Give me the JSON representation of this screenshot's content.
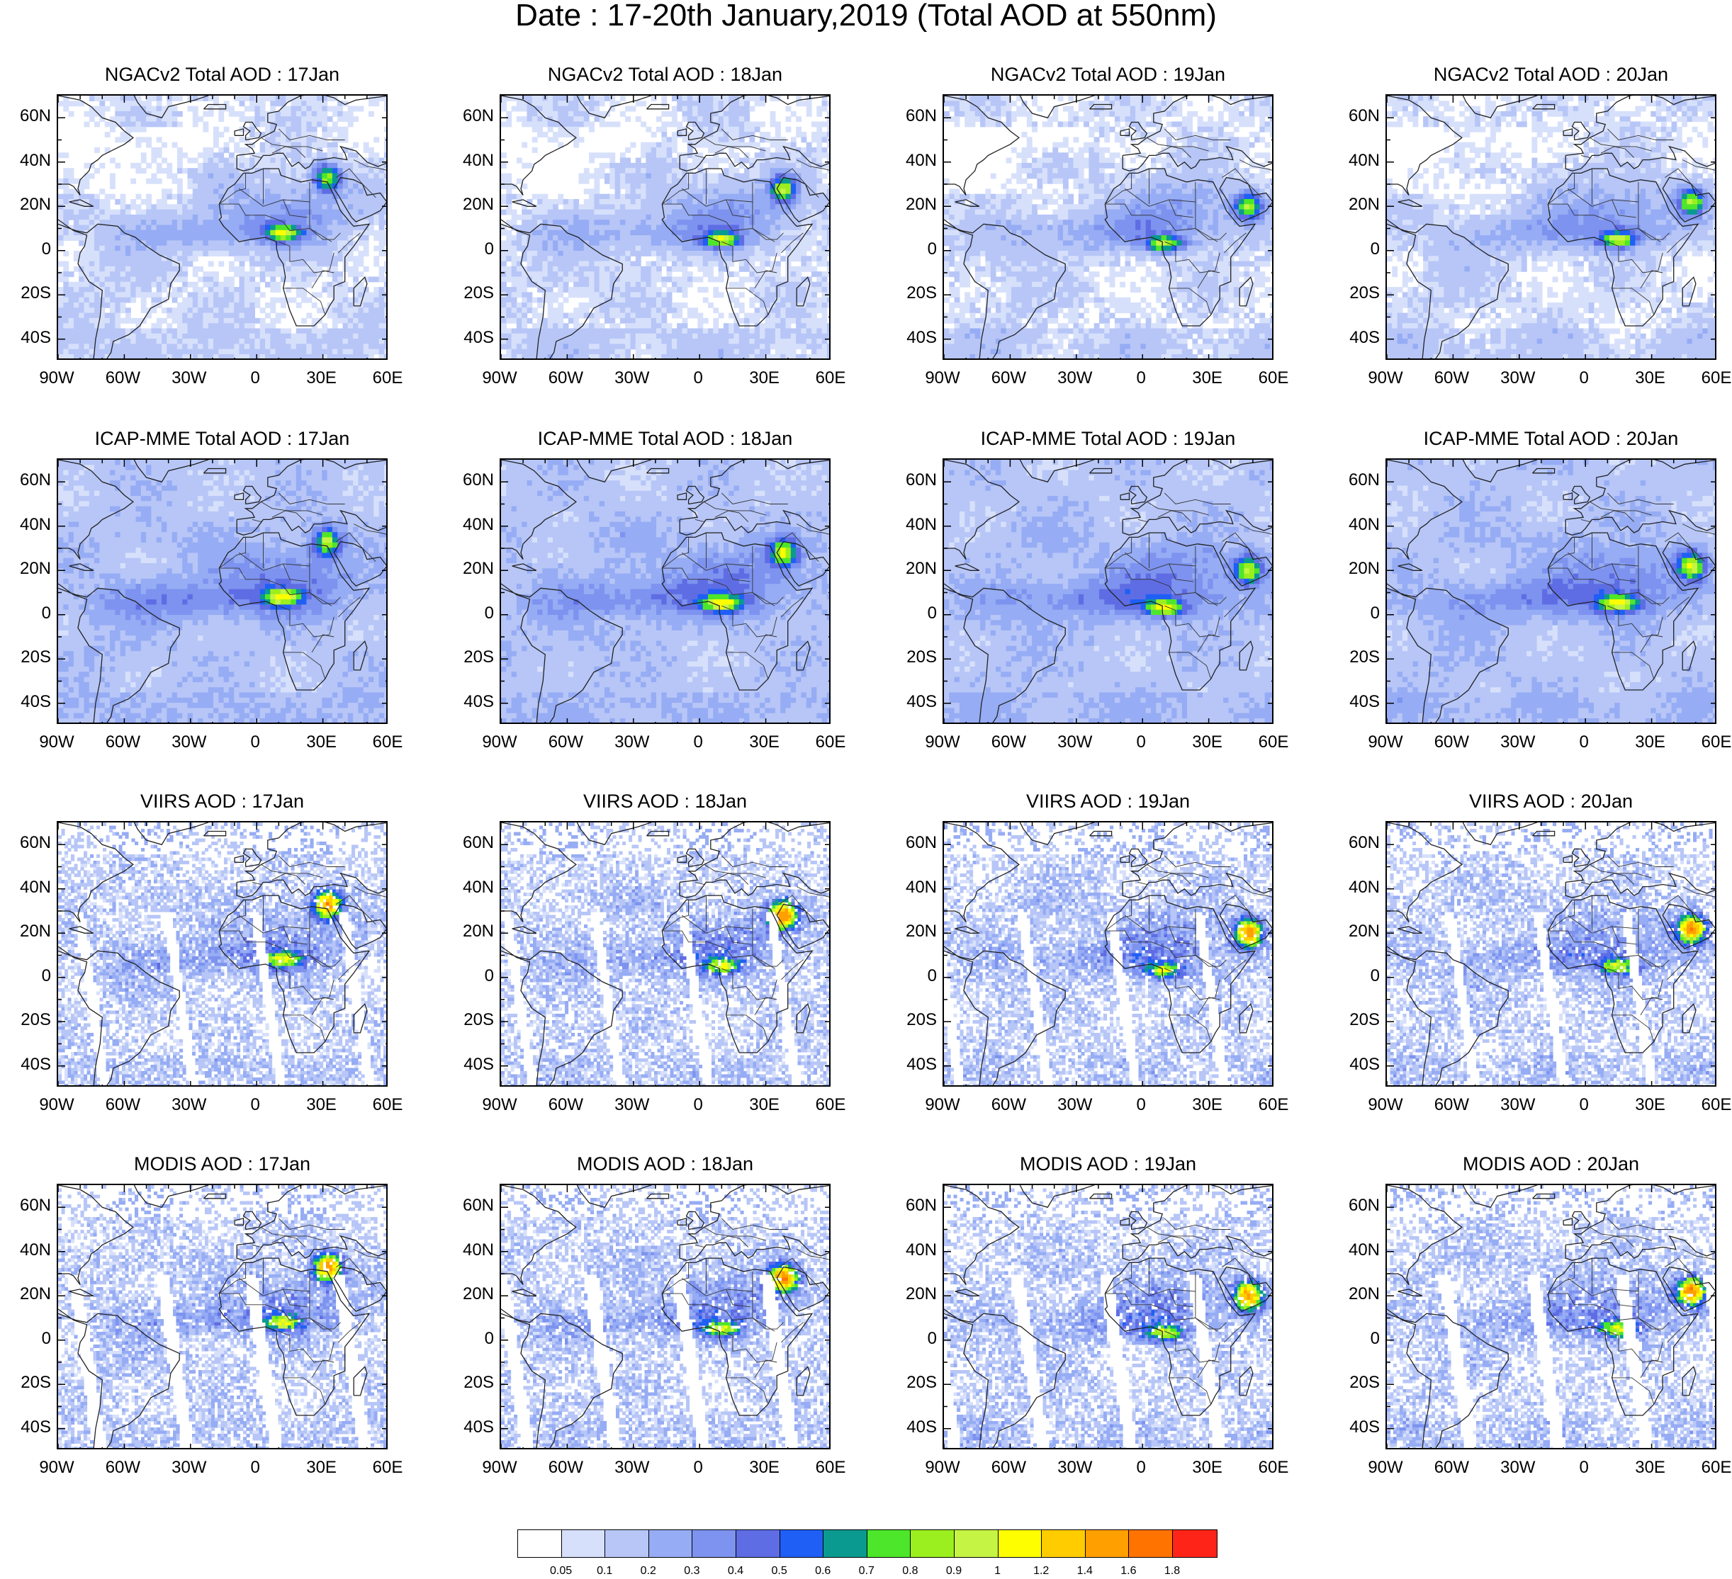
{
  "figure_title": "Date : 17-20th January,2019 (Total AOD at 550nm)",
  "rows": [
    {
      "source": "NGACv2",
      "panel_titles": [
        "NGACv2 Total AOD : 17Jan",
        "NGACv2 Total AOD : 18Jan",
        "NGACv2 Total AOD : 19Jan",
        "NGACv2 Total AOD : 20Jan"
      ]
    },
    {
      "source": "ICAP-MME",
      "panel_titles": [
        "ICAP-MME Total AOD : 17Jan",
        "ICAP-MME Total AOD : 18Jan",
        "ICAP-MME Total AOD : 19Jan",
        "ICAP-MME Total AOD : 20Jan"
      ]
    },
    {
      "source": "VIIRS",
      "panel_titles": [
        "VIIRS AOD : 17Jan",
        "VIIRS AOD : 18Jan",
        "VIIRS AOD : 19Jan",
        "VIIRS AOD : 20Jan"
      ]
    },
    {
      "source": "MODIS",
      "panel_titles": [
        "MODIS AOD : 17Jan",
        "MODIS AOD : 18Jan",
        "MODIS AOD : 19Jan",
        "MODIS AOD : 20Jan"
      ]
    }
  ],
  "lat_ticks": [
    "60N",
    "40N",
    "20N",
    "0",
    "20S",
    "40S"
  ],
  "lat_values": [
    60,
    40,
    20,
    0,
    -20,
    -40
  ],
  "lon_ticks": [
    "90W",
    "60W",
    "30W",
    "0",
    "30E",
    "60E"
  ],
  "lon_values": [
    -90,
    -60,
    -30,
    0,
    30,
    60
  ],
  "map_extent": {
    "lon": [
      -90,
      60
    ],
    "lat": [
      -50,
      70
    ]
  },
  "colorbar": {
    "labels": [
      "0.05",
      "0.1",
      "0.2",
      "0.3",
      "0.4",
      "0.5",
      "0.6",
      "0.7",
      "0.8",
      "0.9",
      "1",
      "1.2",
      "1.4",
      "1.6",
      "1.8"
    ],
    "colors": [
      "#ffffff",
      "#d7e0fb",
      "#b7c6f7",
      "#96acf4",
      "#7d93ef",
      "#5f6de4",
      "#1f5ff5",
      "#0a9a90",
      "#4ee62a",
      "#9bef1f",
      "#c6f444",
      "#fffe00",
      "#ffcc00",
      "#ff9f00",
      "#ff7300",
      "#ff2418"
    ]
  },
  "chart_data": {
    "type": "heatmap",
    "title": "Date : 17-20th January,2019 (Total AOD at 550nm)",
    "variable": "Total AOD at 550nm",
    "dates": [
      "17Jan",
      "18Jan",
      "19Jan",
      "20Jan"
    ],
    "sources": [
      "NGACv2",
      "ICAP-MME",
      "VIIRS",
      "MODIS"
    ],
    "x_range": [
      -90,
      60
    ],
    "y_range": [
      -50,
      70
    ],
    "levels": [
      0.05,
      0.1,
      0.2,
      0.3,
      0.4,
      0.5,
      0.6,
      0.7,
      0.8,
      0.9,
      1,
      1.2,
      1.4,
      1.6,
      1.8
    ]
  }
}
